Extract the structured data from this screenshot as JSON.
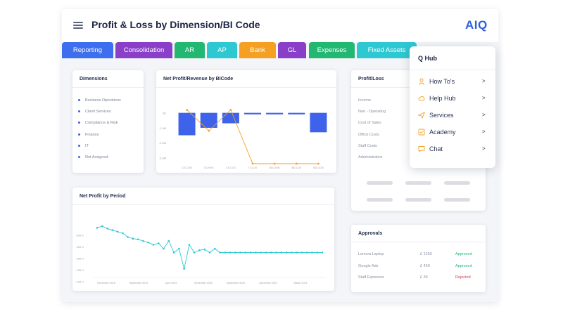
{
  "header": {
    "title": "Profit & Loss by Dimension/BI Code",
    "logo": "AIQ"
  },
  "tabs": [
    {
      "label": "Reporting",
      "color": "#3d6ef0"
    },
    {
      "label": "Consolidation",
      "color": "#8a3fc9"
    },
    {
      "label": "AR",
      "color": "#22b872"
    },
    {
      "label": "AP",
      "color": "#2ec8d2"
    },
    {
      "label": "Bank",
      "color": "#f5a023"
    },
    {
      "label": "GL",
      "color": "#8a3fc9"
    },
    {
      "label": "Expenses",
      "color": "#22b872"
    },
    {
      "label": "Fixed Assets",
      "color": "#2ec8d2"
    }
  ],
  "dimensions": {
    "title": "Dimensions",
    "items": [
      "Business Operations",
      "Client Services",
      "Compliance & Risk",
      "Finance",
      "IT",
      "Not Assigned"
    ]
  },
  "net_profit_bicode": {
    "title": "Net Profit/Revenue by BICode",
    "y_ticks": [
      "0K",
      "-1.0M",
      "-2.0M",
      "-3.0M"
    ],
    "x_ticks": [
      "CS-CUB",
      "CS-HVG",
      "CS-CCS",
      "IT-LCN",
      "BD-GUB",
      "BD-LCN",
      "BD-GON"
    ]
  },
  "net_profit_period": {
    "title": "Net Profit by Period",
    "y_ticks": [
      "500 K",
      "300 K",
      "200 K",
      "100 K",
      "-100 K"
    ],
    "x_ticks": [
      "December 2018",
      "September 2019",
      "June 2019",
      "December 2020",
      "September 2020",
      "December 2021",
      "March 2021"
    ]
  },
  "profit_loss": {
    "title": "Profit/Loss",
    "items": [
      "Income",
      "Non - Operating",
      "Cost of Sales",
      "Office Costs",
      "Staff Costs",
      "Administrative"
    ]
  },
  "approvals": {
    "title": "Approvals",
    "rows": [
      {
        "item": "Lenova Laptop",
        "amount": "£ 1250",
        "status": "Approved",
        "status_color": "#22b872"
      },
      {
        "item": "Google Ads",
        "amount": "£ 450",
        "status": "Approved",
        "status_color": "#22b872"
      },
      {
        "item": "Staff Expenses",
        "amount": "£ 39",
        "status": "Rejected",
        "status_color": "#e2344a"
      }
    ]
  },
  "qhub": {
    "title": "Q Hub",
    "items": [
      {
        "label": "How To's",
        "icon": "person-icon",
        "arrow": ">"
      },
      {
        "label": "Help Hub",
        "icon": "cloud-icon",
        "arrow": ">"
      },
      {
        "label": "Services",
        "icon": "send-icon",
        "arrow": ">"
      },
      {
        "label": "Academy",
        "icon": "checkbox-icon",
        "arrow": ">"
      },
      {
        "label": "Chat",
        "icon": "chat-icon",
        "arrow": ">"
      }
    ]
  },
  "chart_data": [
    {
      "type": "bar",
      "title": "Net Profit/Revenue by BICode",
      "categories": [
        "CS-CUB",
        "CS-HVG",
        "CS-CCS",
        "IT-LCN",
        "BD-GUB",
        "BD-LCN",
        "BD-GON"
      ],
      "series": [
        {
          "type": "bar",
          "values": [
            -1.5,
            -1.0,
            -0.7,
            -0.1,
            -0.1,
            -0.1,
            -1.3
          ]
        },
        {
          "type": "line",
          "values": [
            0.2,
            -1.2,
            0.2,
            -3.4,
            -3.4,
            -3.4,
            -3.4
          ]
        }
      ],
      "ylim": [
        -3.4,
        0.5
      ],
      "y_ticks": [
        "0K",
        "-1.0M",
        "-2.0M",
        "-3.0M"
      ]
    },
    {
      "type": "line",
      "title": "Net Profit by Period",
      "values": [
        470,
        490,
        460,
        440,
        420,
        400,
        350,
        330,
        320,
        300,
        280,
        250,
        270,
        200,
        300,
        150,
        200,
        -60,
        250,
        150,
        180,
        190,
        150,
        200,
        150,
        150,
        150,
        150,
        150,
        150,
        150,
        150,
        150,
        150,
        150,
        150,
        150,
        150,
        150,
        150,
        150,
        150,
        150,
        150,
        150
      ],
      "y_ticks": [
        "500 K",
        "300 K",
        "200 K",
        "100 K",
        "-100 K"
      ],
      "x_ticks": [
        "December 2018",
        "September 2019",
        "June 2019",
        "December 2020",
        "September 2020",
        "December 2021",
        "March 2021"
      ]
    }
  ]
}
